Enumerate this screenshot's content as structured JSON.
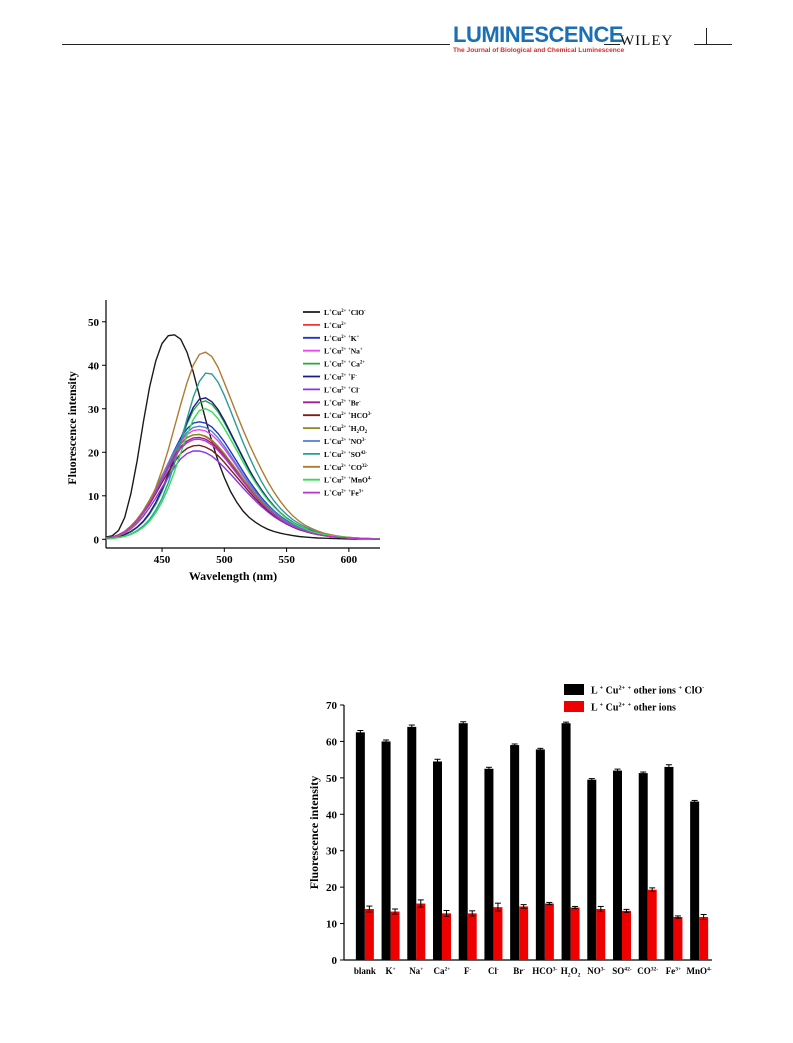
{
  "header": {
    "journal_name": "LUMINESCENCE",
    "journal_subtitle": "The Journal of Biological and Chemical Luminescence",
    "publisher": "WILEY",
    "colors": {
      "journal": "#1a6fb5",
      "subtitle": "#d72a2a"
    }
  },
  "chart_data": [
    {
      "type": "line",
      "title": "",
      "xlabel": "Wavelength (nm)",
      "ylabel": "Fluorescence intensity",
      "xlim": [
        405,
        625
      ],
      "ylim": [
        -2,
        55
      ],
      "x_ticks": [
        450,
        500,
        550,
        600
      ],
      "y_ticks": [
        0,
        10,
        20,
        30,
        40,
        50
      ],
      "grid": false,
      "legend_position": "top-right",
      "x": [
        405,
        410,
        415,
        420,
        425,
        430,
        435,
        440,
        445,
        450,
        455,
        460,
        465,
        470,
        475,
        480,
        485,
        490,
        495,
        500,
        505,
        510,
        515,
        520,
        525,
        530,
        535,
        540,
        545,
        550,
        555,
        560,
        565,
        570,
        575,
        580,
        585,
        590,
        595,
        600,
        605,
        610,
        615,
        620,
        625
      ],
      "series": [
        {
          "name": "L+Cu2+ +ClO-",
          "color": "#1a1a1a",
          "values": [
            0.5,
            0.8,
            2,
            5,
            10.5,
            18,
            27,
            35,
            41,
            45,
            46.8,
            47,
            46,
            43,
            38.5,
            33,
            27.5,
            22.5,
            18,
            14.2,
            11,
            8.5,
            6.5,
            5,
            3.9,
            3,
            2.3,
            1.8,
            1.4,
            1.1,
            0.85,
            0.65,
            0.5,
            0.4,
            0.3,
            0.25,
            0.2,
            0.15,
            0.12,
            0.1,
            0.08,
            0.06,
            0.05,
            0.04,
            0.03
          ]
        },
        {
          "name": "L+Cu2+",
          "color": "#ee3333",
          "values": [
            0.3,
            0.5,
            1,
            1.8,
            3,
            4.6,
            6.6,
            9,
            11.7,
            14.6,
            17.5,
            20.1,
            22.1,
            23.4,
            24,
            24.1,
            23.6,
            22.6,
            21.1,
            19.4,
            17.5,
            15.6,
            13.7,
            11.9,
            10.2,
            8.6,
            7.2,
            6,
            4.9,
            4,
            3.2,
            2.6,
            2,
            1.6,
            1.2,
            0.9,
            0.7,
            0.55,
            0.4,
            0.3,
            0.25,
            0.2,
            0.15,
            0.1,
            0.08
          ]
        },
        {
          "name": "L+Cu2+ +K+",
          "color": "#2233cc",
          "values": [
            0.2,
            0.4,
            0.8,
            1.5,
            2.6,
            4.1,
            6.1,
            8.5,
            11.3,
            14.3,
            17.5,
            20.5,
            23.3,
            25.4,
            26.7,
            27,
            26.7,
            25.8,
            24.3,
            22.4,
            20.2,
            17.9,
            15.6,
            13.4,
            11.4,
            9.5,
            7.9,
            6.5,
            5.3,
            4.3,
            3.4,
            2.7,
            2.1,
            1.7,
            1.3,
            1,
            0.8,
            0.6,
            0.45,
            0.35,
            0.27,
            0.2,
            0.15,
            0.12,
            0.09
          ]
        },
        {
          "name": "L+Cu2+ +Na+",
          "color": "#ee44ee",
          "values": [
            0.3,
            0.5,
            1,
            1.8,
            3,
            4.5,
            6.5,
            8.9,
            11.6,
            14.5,
            17.5,
            20.2,
            22.5,
            24.1,
            25,
            25.2,
            24.9,
            24,
            22.6,
            20.8,
            18.8,
            16.7,
            14.6,
            12.6,
            10.8,
            9.1,
            7.6,
            6.3,
            5.1,
            4.1,
            3.3,
            2.6,
            2,
            1.6,
            1.2,
            0.95,
            0.75,
            0.55,
            0.42,
            0.32,
            0.25,
            0.19,
            0.14,
            0.1,
            0.08
          ]
        },
        {
          "name": "L+Cu2+ +Ca2+",
          "color": "#22aa33",
          "values": [
            0.2,
            0.3,
            0.6,
            1,
            1.7,
            2.7,
            4,
            5.8,
            8.1,
            11,
            14.4,
            18.4,
            22.5,
            26.5,
            29.6,
            31.4,
            31.8,
            31,
            29.3,
            26.9,
            24.2,
            21.4,
            18.6,
            15.9,
            13.4,
            11.2,
            9.2,
            7.5,
            6.1,
            4.9,
            3.9,
            3.1,
            2.4,
            1.9,
            1.4,
            1.1,
            0.85,
            0.65,
            0.5,
            0.38,
            0.29,
            0.22,
            0.17,
            0.13,
            0.1
          ]
        },
        {
          "name": "L+Cu2+ +F-",
          "color": "#1a1a88",
          "values": [
            0.2,
            0.3,
            0.6,
            1.1,
            1.8,
            2.8,
            4.2,
            6.1,
            8.5,
            11.5,
            15,
            19,
            23.1,
            27,
            30.3,
            32.2,
            32.5,
            31.6,
            29.8,
            27.3,
            24.5,
            21.6,
            18.8,
            16,
            13.5,
            11.3,
            9.3,
            7.6,
            6.1,
            4.9,
            3.9,
            3.1,
            2.4,
            1.9,
            1.4,
            1.1,
            0.85,
            0.65,
            0.5,
            0.38,
            0.29,
            0.22,
            0.17,
            0.13,
            0.1
          ]
        },
        {
          "name": "L+Cu2+ +Cl-",
          "color": "#8a33ee",
          "values": [
            0.2,
            0.4,
            0.8,
            1.4,
            2.4,
            3.7,
            5.3,
            7.3,
            9.5,
            11.9,
            14.3,
            16.6,
            18.5,
            19.7,
            20.3,
            20.3,
            19.9,
            19.1,
            17.9,
            16.5,
            15,
            13.4,
            11.8,
            10.3,
            8.8,
            7.5,
            6.3,
            5.2,
            4.3,
            3.5,
            2.8,
            2.2,
            1.8,
            1.4,
            1.1,
            0.85,
            0.65,
            0.5,
            0.38,
            0.29,
            0.22,
            0.17,
            0.13,
            0.1,
            0.08
          ]
        },
        {
          "name": "L+Cu2+ +Br-",
          "color": "#992299",
          "values": [
            0.3,
            0.5,
            1,
            1.8,
            3,
            4.5,
            6.4,
            8.7,
            11.2,
            14,
            16.8,
            19.3,
            21.3,
            22.6,
            23.3,
            23.4,
            23,
            22.1,
            20.8,
            19.1,
            17.3,
            15.4,
            13.5,
            11.7,
            10,
            8.4,
            7,
            5.8,
            4.7,
            3.8,
            3.1,
            2.4,
            1.9,
            1.5,
            1.1,
            0.85,
            0.65,
            0.5,
            0.38,
            0.29,
            0.22,
            0.17,
            0.13,
            0.1,
            0.08
          ]
        },
        {
          "name": "L+Cu2+ +HCO3-",
          "color": "#7a1f1f",
          "values": [
            0.3,
            0.5,
            1,
            1.7,
            2.8,
            4.2,
            6,
            8.1,
            10.5,
            13,
            15.5,
            17.8,
            19.7,
            20.9,
            21.5,
            21.6,
            21.2,
            20.4,
            19.2,
            17.7,
            16,
            14.3,
            12.6,
            10.9,
            9.3,
            7.9,
            6.6,
            5.5,
            4.5,
            3.6,
            2.9,
            2.3,
            1.8,
            1.4,
            1.1,
            0.85,
            0.65,
            0.5,
            0.38,
            0.29,
            0.22,
            0.17,
            0.13,
            0.1,
            0.08
          ]
        },
        {
          "name": "L+Cu2+ +H2O2",
          "color": "#888822",
          "values": [
            0.3,
            0.5,
            1,
            1.8,
            3,
            4.6,
            6.6,
            9,
            11.6,
            14.4,
            17.2,
            19.8,
            21.9,
            23.3,
            24,
            24.1,
            23.7,
            22.8,
            21.4,
            19.7,
            17.8,
            15.9,
            13.9,
            12.1,
            10.3,
            8.7,
            7.3,
            6,
            4.9,
            4,
            3.2,
            2.5,
            2,
            1.5,
            1.2,
            0.9,
            0.7,
            0.53,
            0.4,
            0.3,
            0.23,
            0.18,
            0.14,
            0.1,
            0.08
          ]
        },
        {
          "name": "L+Cu2+ +NO3-",
          "color": "#4f7fcf",
          "values": [
            0.3,
            0.5,
            0.9,
            1.6,
            2.7,
            4.2,
            6.1,
            8.5,
            11.2,
            14.2,
            17.3,
            20.2,
            22.8,
            24.6,
            25.7,
            26,
            25.7,
            24.8,
            23.3,
            21.4,
            19.3,
            17.1,
            14.9,
            12.8,
            10.9,
            9.2,
            7.6,
            6.3,
            5.1,
            4.1,
            3.3,
            2.6,
            2,
            1.6,
            1.2,
            0.95,
            0.75,
            0.55,
            0.42,
            0.32,
            0.25,
            0.19,
            0.14,
            0.1,
            0.08
          ]
        },
        {
          "name": "L+Cu2+ +SO42-",
          "color": "#2a9b9b",
          "values": [
            0.1,
            0.2,
            0.4,
            0.7,
            1.2,
            2,
            3.1,
            4.6,
            6.7,
            9.4,
            13,
            17.4,
            22.4,
            27.7,
            32.6,
            36.3,
            38.2,
            38,
            36.1,
            33.1,
            29.6,
            25.9,
            22.3,
            19,
            15.9,
            13.2,
            10.8,
            8.8,
            7.1,
            5.7,
            4.5,
            3.6,
            2.8,
            2.2,
            1.7,
            1.3,
            1,
            0.75,
            0.57,
            0.43,
            0.33,
            0.25,
            0.19,
            0.14,
            0.1
          ]
        },
        {
          "name": "L+Cu2+ +CO32-",
          "color": "#b07a30",
          "values": [
            0.2,
            0.4,
            0.8,
            1.5,
            2.5,
            4,
            6,
            8.6,
            11.9,
            15.9,
            20.6,
            25.8,
            31,
            36,
            40,
            42.5,
            43,
            42,
            39.5,
            36,
            32.4,
            28.7,
            25.2,
            21.9,
            18.8,
            15.9,
            13.2,
            10.8,
            8.7,
            6.9,
            5.4,
            4.2,
            3.2,
            2.5,
            1.9,
            1.4,
            1.1,
            0.8,
            0.6,
            0.45,
            0.34,
            0.26,
            0.19,
            0.14,
            0.1
          ]
        },
        {
          "name": "L+Cu2+ +MnO4-",
          "color": "#33dd55",
          "values": [
            0.1,
            0.2,
            0.4,
            0.7,
            1.1,
            1.8,
            2.8,
            4.2,
            6.1,
            8.6,
            11.8,
            15.6,
            19.8,
            24,
            27.5,
            29.6,
            30,
            29.3,
            27.7,
            25.5,
            23,
            20.4,
            17.8,
            15.3,
            13,
            10.9,
            9,
            7.4,
            6,
            4.8,
            3.8,
            3,
            2.4,
            1.8,
            1.4,
            1.1,
            0.85,
            0.65,
            0.5,
            0.38,
            0.29,
            0.22,
            0.17,
            0.13,
            0.1
          ]
        },
        {
          "name": "L+Cu2+ +Fe3+",
          "color": "#bb33cc",
          "values": [
            0.3,
            0.5,
            1,
            1.7,
            2.8,
            4.3,
            6.2,
            8.4,
            10.9,
            13.6,
            16.3,
            18.8,
            20.9,
            22.2,
            22.9,
            23,
            22.6,
            21.7,
            20.4,
            18.8,
            17,
            15.1,
            13.3,
            11.5,
            9.8,
            8.3,
            6.9,
            5.7,
            4.6,
            3.7,
            3,
            2.4,
            1.9,
            1.5,
            1.1,
            0.85,
            0.65,
            0.5,
            0.38,
            0.29,
            0.22,
            0.17,
            0.13,
            0.1,
            0.08
          ]
        }
      ]
    },
    {
      "type": "bar",
      "title": "",
      "xlabel": "",
      "ylabel": "Fluorescence intensity",
      "ylim": [
        0,
        70
      ],
      "y_ticks": [
        0,
        10,
        20,
        30,
        40,
        50,
        60,
        70
      ],
      "grid": false,
      "legend_position": "top-right",
      "categories": [
        "blank",
        "K+",
        "Na+",
        "Ca2+",
        "F-",
        "Cl-",
        "Br-",
        "HCO3-",
        "H2O2",
        "NO3-",
        "SO42-",
        "CO32-",
        "Fe3+",
        "MnO4-"
      ],
      "series": [
        {
          "name": "L + Cu2+ + other ions + ClO-",
          "color": "#000000",
          "values": [
            62.5,
            60,
            64,
            54.5,
            65,
            52.5,
            59,
            57.8,
            65,
            49.5,
            52,
            51.3,
            53,
            43.5
          ],
          "errors": [
            0.5,
            0.4,
            0.5,
            0.6,
            0.4,
            0.4,
            0.3,
            0.3,
            0.3,
            0.3,
            0.4,
            0.3,
            0.6,
            0.3
          ]
        },
        {
          "name": "L + Cu2+ + other ions",
          "color": "#ee0000",
          "values": [
            14,
            13.3,
            15.5,
            12.8,
            12.8,
            14.5,
            14.7,
            15.5,
            14.4,
            14,
            13.5,
            19.3,
            11.8,
            11.8
          ],
          "errors": [
            0.8,
            0.7,
            1,
            0.8,
            0.7,
            1.1,
            0.5,
            0.3,
            0.3,
            0.7,
            0.4,
            0.5,
            0.3,
            0.7
          ]
        }
      ]
    }
  ]
}
